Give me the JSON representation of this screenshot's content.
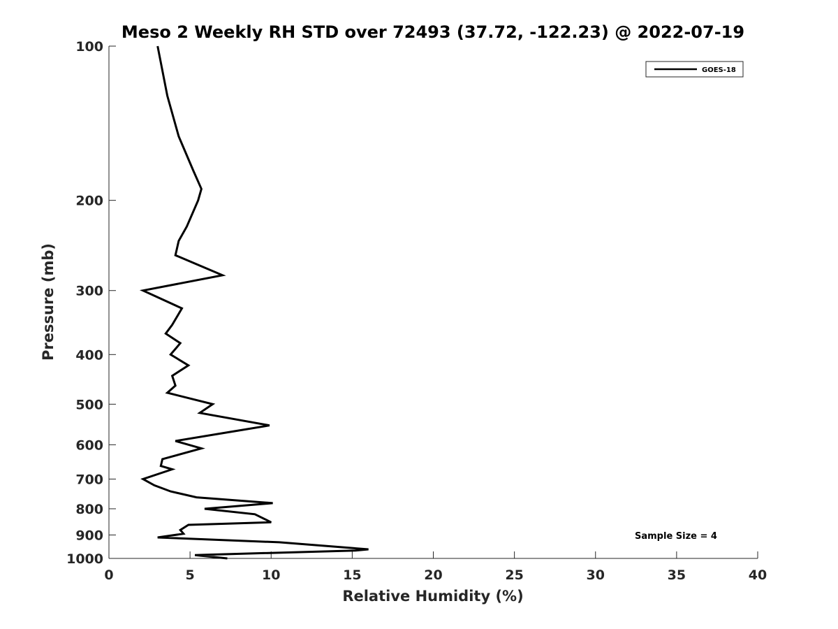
{
  "chart_data": {
    "type": "line",
    "title": "Meso 2 Weekly RH STD over 72493 (37.72, -122.23) @ 2022-07-19",
    "xlabel": "Relative Humidity (%)",
    "ylabel": "Pressure (mb)",
    "xlim": [
      0,
      40
    ],
    "ylim": [
      100,
      1000
    ],
    "y_scale": "log",
    "y_reversed": true,
    "x_ticks": [
      0,
      5,
      10,
      15,
      20,
      25,
      30,
      35,
      40
    ],
    "x_tick_labels": [
      "0",
      "5",
      "10",
      "15",
      "20",
      "25",
      "30",
      "35",
      "40"
    ],
    "y_ticks": [
      100,
      200,
      300,
      400,
      500,
      600,
      700,
      800,
      900,
      1000
    ],
    "y_tick_labels": [
      "100",
      "200",
      "300",
      "400",
      "500",
      "600",
      "700",
      "800",
      "900",
      "1000"
    ],
    "grid": false,
    "legend_position": "top-right",
    "annotation": "Sample Size = 4",
    "series": [
      {
        "name": "GOES-18",
        "color": "#000000",
        "points": [
          [
            3.0,
            100
          ],
          [
            3.6,
            125
          ],
          [
            4.3,
            150
          ],
          [
            5.2,
            175
          ],
          [
            5.7,
            190
          ],
          [
            5.5,
            200
          ],
          [
            4.8,
            225
          ],
          [
            4.3,
            240
          ],
          [
            4.1,
            256
          ],
          [
            7.0,
            280
          ],
          [
            2.1,
            300
          ],
          [
            4.5,
            325
          ],
          [
            3.9,
            350
          ],
          [
            3.5,
            364
          ],
          [
            4.4,
            380
          ],
          [
            3.8,
            400
          ],
          [
            4.9,
            420
          ],
          [
            3.9,
            440
          ],
          [
            4.1,
            460
          ],
          [
            3.6,
            475
          ],
          [
            6.4,
            500
          ],
          [
            5.6,
            520
          ],
          [
            9.9,
            550
          ],
          [
            8.1,
            562
          ],
          [
            4.1,
            590
          ],
          [
            5.7,
            610
          ],
          [
            3.3,
            640
          ],
          [
            3.2,
            660
          ],
          [
            3.9,
            670
          ],
          [
            2.1,
            700
          ],
          [
            2.8,
            720
          ],
          [
            3.8,
            740
          ],
          [
            5.4,
            760
          ],
          [
            10.1,
            780
          ],
          [
            5.9,
            800
          ],
          [
            9.0,
            820
          ],
          [
            10.0,
            850
          ],
          [
            4.9,
            860
          ],
          [
            4.4,
            880
          ],
          [
            4.6,
            895
          ],
          [
            3.0,
            910
          ],
          [
            10.5,
            930
          ],
          [
            16.0,
            960
          ],
          [
            15.2,
            965
          ],
          [
            5.3,
            985
          ],
          [
            7.3,
            1000
          ]
        ]
      }
    ]
  }
}
